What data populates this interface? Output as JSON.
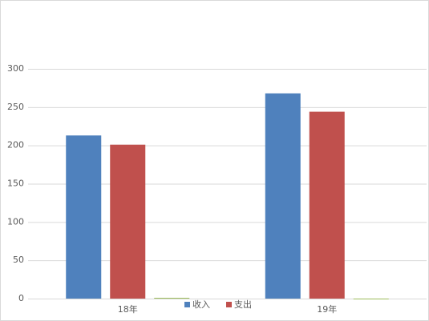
{
  "chart_data": {
    "type": "bar",
    "categories": [
      "18年",
      "19年"
    ],
    "series": [
      {
        "name": "收入",
        "color": "#4f81bd",
        "values": [
          213,
          268
        ]
      },
      {
        "name": "支出",
        "color": "#c0504d",
        "values": [
          201,
          244
        ]
      },
      {
        "color": "#9bbb59",
        "values": [
          1,
          0
        ]
      }
    ],
    "ylim": [
      0,
      300
    ],
    "yticks": [
      0,
      50,
      100,
      150,
      200,
      250,
      300
    ],
    "grid": true,
    "legend": "bottom"
  }
}
